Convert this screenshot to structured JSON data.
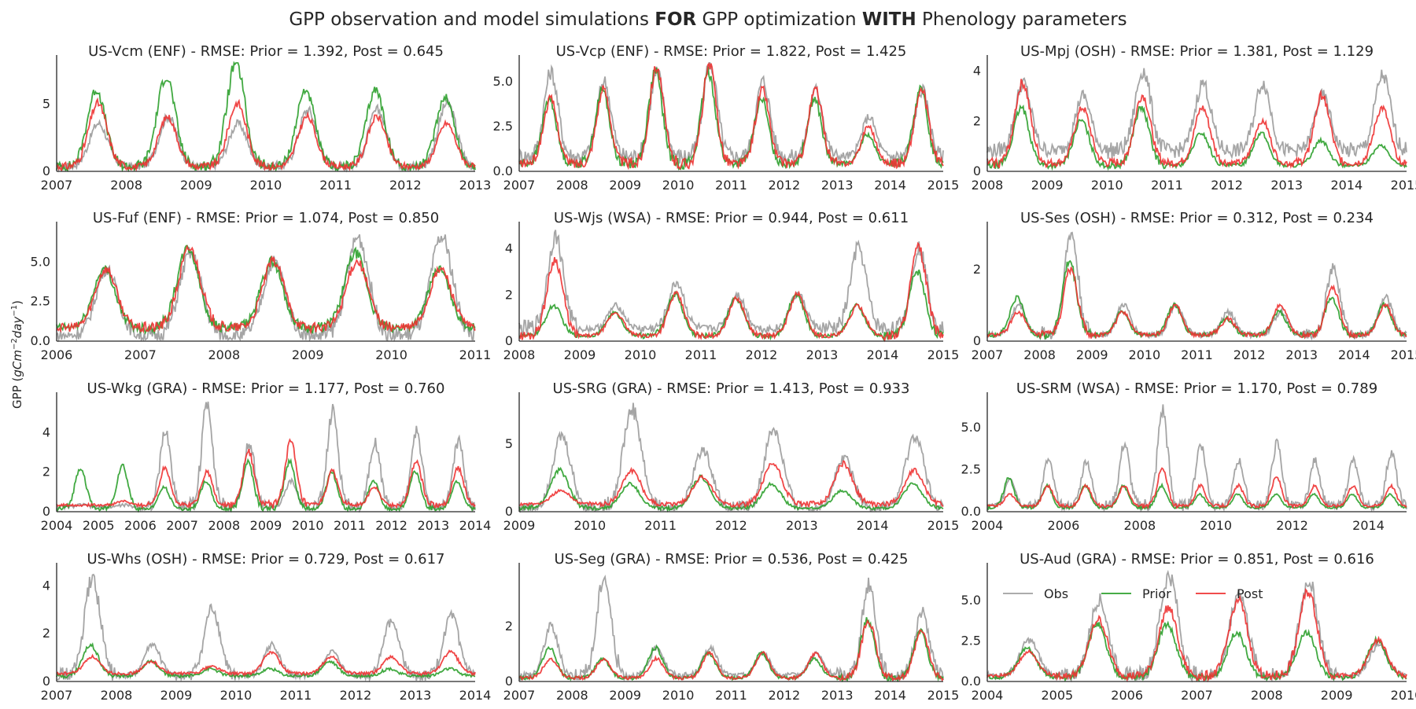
{
  "figure": {
    "suptitle_a": "GPP observation and model simulations ",
    "suptitle_b": "FOR",
    "suptitle_c": " GPP optimization ",
    "suptitle_d": "WITH",
    "suptitle_e": " Phenology parameters",
    "ylabel_prefix": "GPP (",
    "ylabel_unit1": "gCm",
    "ylabel_exp1": "−2",
    "ylabel_unit2": "day",
    "ylabel_exp2": "−1",
    "ylabel_suffix": ")"
  },
  "colors": {
    "obs": "#a0a0a0",
    "prior": "#2ca02c",
    "post": "#ee3333"
  },
  "legend": {
    "obs": "Obs",
    "prior": "Prior",
    "post": "Post",
    "placement": "upper-left of US-Aud panel"
  },
  "chart_data": [
    {
      "type": "line",
      "title": "US-Vcm (ENF) - RMSE: Prior = 1.392, Post = 0.645",
      "xlim": [
        2007,
        2013
      ],
      "ylim": [
        0,
        8
      ],
      "yticks": [
        0,
        5
      ],
      "ytick_labels": [
        "0",
        "5"
      ],
      "xticks": [
        2007,
        2008,
        2009,
        2010,
        2011,
        2012,
        2013
      ],
      "series": [
        {
          "name": "Obs",
          "peaks": [
            3.5,
            4,
            3.5,
            4.5,
            4.5,
            5
          ],
          "base": 0.3
        },
        {
          "name": "Prior",
          "peaks": [
            6,
            7,
            8,
            6,
            6,
            5.5
          ],
          "base": 0.3
        },
        {
          "name": "Post",
          "peaks": [
            5,
            4,
            5,
            4,
            4,
            3.5
          ],
          "base": 0.3
        }
      ]
    },
    {
      "type": "line",
      "title": "US-Vcp (ENF) - RMSE: Prior = 1.822, Post = 1.425",
      "xlim": [
        2007,
        2015
      ],
      "ylim": [
        0,
        6
      ],
      "yticks": [
        0,
        2.5,
        5
      ],
      "ytick_labels": [
        "0.0",
        "2.5",
        "5.0"
      ],
      "xticks": [
        2007,
        2008,
        2009,
        2010,
        2011,
        2012,
        2013,
        2014,
        2015
      ],
      "series": [
        {
          "name": "Obs",
          "peaks": [
            5.5,
            5,
            5.5,
            6,
            5,
            4.5,
            3,
            4.5
          ],
          "base": 0.8
        },
        {
          "name": "Prior",
          "peaks": [
            4,
            4.5,
            5.5,
            5.5,
            4,
            4,
            2,
            4.5
          ],
          "base": 0.4
        },
        {
          "name": "Post",
          "peaks": [
            4,
            4.5,
            5.8,
            5.8,
            4.5,
            4.5,
            2.5,
            4.5
          ],
          "base": 0.4
        }
      ]
    },
    {
      "type": "line",
      "title": "US-Mpj (OSH) - RMSE: Prior = 1.381, Post = 1.129",
      "xlim": [
        2008,
        2015
      ],
      "ylim": [
        0,
        4.3
      ],
      "yticks": [
        0,
        2,
        4
      ],
      "ytick_labels": [
        "0",
        "2",
        "4"
      ],
      "xticks": [
        2008,
        2009,
        2010,
        2011,
        2012,
        2013,
        2014,
        2015
      ],
      "series": [
        {
          "name": "Obs",
          "peaks": [
            3.5,
            3,
            4,
            3.5,
            3.5,
            3,
            3.8
          ],
          "base": 0.8
        },
        {
          "name": "Prior",
          "peaks": [
            2.5,
            2,
            2.5,
            1.5,
            1.5,
            1.2,
            1
          ],
          "base": 0.2
        },
        {
          "name": "Post",
          "peaks": [
            3.5,
            2.5,
            3,
            2.5,
            2,
            3,
            2.5
          ],
          "base": 0.3
        }
      ]
    },
    {
      "type": "line",
      "title": "US-Fuf (ENF) - RMSE: Prior = 1.074, Post = 0.850",
      "xlim": [
        2006,
        2011
      ],
      "ylim": [
        0,
        7
      ],
      "yticks": [
        0,
        2.5,
        5
      ],
      "ytick_labels": [
        "0.0",
        "2.5",
        "5.0"
      ],
      "xticks": [
        2006,
        2007,
        2008,
        2009,
        2010,
        2011
      ],
      "series": [
        {
          "name": "Obs",
          "peaks": [
            4.5,
            5.5,
            5,
            6.5,
            6.5
          ],
          "base": 0.3
        },
        {
          "name": "Prior",
          "peaks": [
            4.5,
            5.8,
            5,
            5.5,
            4.5
          ],
          "base": 0.8
        },
        {
          "name": "Post",
          "peaks": [
            4.5,
            5.8,
            5,
            5,
            4.5
          ],
          "base": 0.8
        }
      ]
    },
    {
      "type": "line",
      "title": "US-Wjs (WSA) - RMSE: Prior = 0.944, Post = 0.611",
      "xlim": [
        2008,
        2015
      ],
      "ylim": [
        0,
        4.8
      ],
      "yticks": [
        0,
        2,
        4
      ],
      "ytick_labels": [
        "0",
        "2",
        "4"
      ],
      "xticks": [
        2008,
        2009,
        2010,
        2011,
        2012,
        2013,
        2014,
        2015
      ],
      "series": [
        {
          "name": "Obs",
          "peaks": [
            4.5,
            1.5,
            2.5,
            2,
            2,
            4,
            4
          ],
          "base": 0.5
        },
        {
          "name": "Prior",
          "peaks": [
            1.5,
            1.2,
            2,
            1.8,
            2,
            1.5,
            3
          ],
          "base": 0.2
        },
        {
          "name": "Post",
          "peaks": [
            3.5,
            1.2,
            2,
            1.8,
            2,
            1.5,
            4
          ],
          "base": 0.2
        }
      ]
    },
    {
      "type": "line",
      "title": "US-Ses (OSH) - RMSE: Prior = 0.312, Post = 0.234",
      "xlim": [
        2007,
        2015
      ],
      "ylim": [
        0,
        3.1
      ],
      "yticks": [
        0,
        2
      ],
      "ytick_labels": [
        "0",
        "2"
      ],
      "xticks": [
        2007,
        2008,
        2009,
        2010,
        2011,
        2012,
        2013,
        2014,
        2015
      ],
      "series": [
        {
          "name": "Obs",
          "peaks": [
            1,
            3,
            1,
            1,
            0.8,
            0.8,
            2,
            1.2
          ],
          "base": 0.15
        },
        {
          "name": "Prior",
          "peaks": [
            1.2,
            2.2,
            0.8,
            1,
            0.6,
            0.8,
            1.2,
            1
          ],
          "base": 0.15
        },
        {
          "name": "Post",
          "peaks": [
            0.8,
            2,
            0.8,
            1,
            0.6,
            1,
            1.5,
            1
          ],
          "base": 0.15
        }
      ]
    },
    {
      "type": "line",
      "title": "US-Wkg (GRA) - RMSE: Prior = 1.177, Post = 0.760",
      "xlim": [
        2004,
        2014
      ],
      "ylim": [
        0,
        5.6
      ],
      "yticks": [
        0,
        2,
        4
      ],
      "ytick_labels": [
        "0",
        "2",
        "4"
      ],
      "xticks": [
        2004,
        2005,
        2006,
        2007,
        2008,
        2009,
        2010,
        2011,
        2012,
        2013,
        2014
      ],
      "series": [
        {
          "name": "Obs",
          "peaks": [
            0.3,
            0.3,
            4,
            5.5,
            3.5,
            1.5,
            5,
            3.5,
            4,
            3.5
          ],
          "base": 0.2
        },
        {
          "name": "Prior",
          "peaks": [
            2.2,
            2.3,
            1.2,
            1.5,
            2.5,
            2.5,
            2,
            1.5,
            2,
            1.5
          ],
          "base": 0.1
        },
        {
          "name": "Post",
          "peaks": [
            0.3,
            0.5,
            2.2,
            2,
            3,
            3.5,
            2,
            1.2,
            2.5,
            2.2
          ],
          "base": 0.3
        }
      ]
    },
    {
      "type": "line",
      "title": "US-SRG (GRA) - RMSE: Prior = 1.413, Post = 0.933",
      "xlim": [
        2009,
        2015
      ],
      "ylim": [
        0,
        8.2
      ],
      "yticks": [
        0,
        5
      ],
      "ytick_labels": [
        "0",
        "5"
      ],
      "xticks": [
        2009,
        2010,
        2011,
        2012,
        2013,
        2014,
        2015
      ],
      "series": [
        {
          "name": "Obs",
          "peaks": [
            5.5,
            7.5,
            4.5,
            6,
            4,
            5.5
          ],
          "base": 0.2
        },
        {
          "name": "Prior",
          "peaks": [
            3,
            2,
            2.5,
            2,
            1.5,
            2
          ],
          "base": 0.2
        },
        {
          "name": "Post",
          "peaks": [
            1.5,
            3,
            2.5,
            3.5,
            3.5,
            3
          ],
          "base": 0.5
        }
      ]
    },
    {
      "type": "line",
      "title": "US-SRM (WSA) - RMSE: Prior = 1.170, Post = 0.789",
      "xlim": [
        2004,
        2015
      ],
      "ylim": [
        0,
        6.6
      ],
      "yticks": [
        0,
        2.5,
        5
      ],
      "ytick_labels": [
        "0.0",
        "2.5",
        "5.0"
      ],
      "xticks": [
        2004,
        2006,
        2008,
        2010,
        2012,
        2014
      ],
      "series": [
        {
          "name": "Obs",
          "peaks": [
            2,
            3,
            3,
            4,
            6,
            4,
            3,
            4,
            3,
            3,
            3.5
          ],
          "base": 0.3
        },
        {
          "name": "Prior",
          "peaks": [
            2,
            1.5,
            1.5,
            1.5,
            1.5,
            1,
            1,
            1,
            1,
            1,
            1
          ],
          "base": 0.2
        },
        {
          "name": "Post",
          "peaks": [
            1,
            1.5,
            1.5,
            1.5,
            2.5,
            1.5,
            1.5,
            2,
            1.5,
            1.5,
            1.5
          ],
          "base": 0.3
        }
      ]
    },
    {
      "type": "line",
      "title": "US-Whs (OSH) - RMSE: Prior = 0.729, Post = 0.617",
      "xlim": [
        2007,
        2014
      ],
      "ylim": [
        0,
        4.6
      ],
      "yticks": [
        0,
        2,
        4
      ],
      "ytick_labels": [
        "0",
        "2",
        "4"
      ],
      "xticks": [
        2007,
        2008,
        2009,
        2010,
        2011,
        2012,
        2013,
        2014
      ],
      "series": [
        {
          "name": "Obs",
          "peaks": [
            4.3,
            1.5,
            3,
            1.5,
            1.2,
            2.5,
            2.7
          ],
          "base": 0.2
        },
        {
          "name": "Prior",
          "peaks": [
            1.5,
            0.8,
            0.5,
            0.5,
            0.8,
            0.5,
            0.5
          ],
          "base": 0.2
        },
        {
          "name": "Post",
          "peaks": [
            1,
            0.8,
            0.6,
            1.2,
            1,
            1,
            1.2
          ],
          "base": 0.3
        }
      ]
    },
    {
      "type": "line",
      "title": "US-Seg (GRA) - RMSE: Prior = 0.536, Post = 0.425",
      "xlim": [
        2007,
        2015
      ],
      "ylim": [
        0,
        4
      ],
      "yticks": [
        0,
        2
      ],
      "ytick_labels": [
        "0",
        "2"
      ],
      "xticks": [
        2007,
        2008,
        2009,
        2010,
        2011,
        2012,
        2013,
        2014,
        2015
      ],
      "series": [
        {
          "name": "Obs",
          "peaks": [
            2,
            3.8,
            1.2,
            1.2,
            1,
            1,
            3.5,
            2.5
          ],
          "base": 0.2
        },
        {
          "name": "Prior",
          "peaks": [
            1.2,
            0.8,
            1.2,
            1,
            1,
            0.8,
            2.2,
            1.8
          ],
          "base": 0.1
        },
        {
          "name": "Post",
          "peaks": [
            0.8,
            0.8,
            0.8,
            1,
            1,
            1,
            2.2,
            1.8
          ],
          "base": 0.1
        }
      ]
    },
    {
      "type": "line",
      "title": "US-Aud (GRA) - RMSE: Prior = 0.851, Post = 0.616",
      "xlim": [
        2004,
        2010
      ],
      "ylim": [
        0,
        6.8
      ],
      "yticks": [
        0,
        2.5,
        5
      ],
      "ytick_labels": [
        "0.0",
        "2.5",
        "5.0"
      ],
      "xticks": [
        2004,
        2005,
        2006,
        2007,
        2008,
        2009,
        2010
      ],
      "series": [
        {
          "name": "Obs",
          "peaks": [
            2.5,
            5,
            6.5,
            5.5,
            6.2,
            2.2
          ],
          "base": 0.3
        },
        {
          "name": "Prior",
          "peaks": [
            2,
            3.5,
            3.5,
            3,
            3,
            2.5
          ],
          "base": 0.2
        },
        {
          "name": "Post",
          "peaks": [
            1.8,
            3.8,
            4.5,
            5,
            5.5,
            2.5
          ],
          "base": 0.3
        }
      ]
    }
  ]
}
